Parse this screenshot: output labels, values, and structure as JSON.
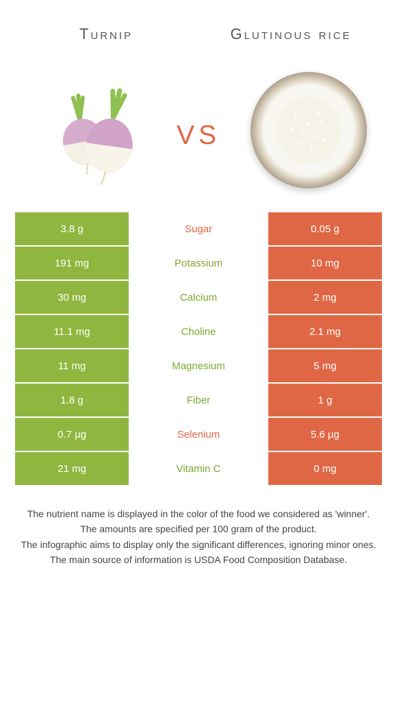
{
  "header": {
    "left_title": "Turnip",
    "right_title": "Glutinous rice",
    "vs_label": "vs"
  },
  "colors": {
    "left_bg": "#8fb63f",
    "right_bg": "#e06745",
    "mid_bg": "#ffffff",
    "winner_left_text": "#7ba82e",
    "winner_right_text": "#e06745"
  },
  "rows": [
    {
      "nutrient": "Sugar",
      "left": "3.8 g",
      "right": "0.05 g",
      "winner": "right"
    },
    {
      "nutrient": "Potassium",
      "left": "191 mg",
      "right": "10 mg",
      "winner": "left"
    },
    {
      "nutrient": "Calcium",
      "left": "30 mg",
      "right": "2 mg",
      "winner": "left"
    },
    {
      "nutrient": "Choline",
      "left": "11.1 mg",
      "right": "2.1 mg",
      "winner": "left"
    },
    {
      "nutrient": "Magnesium",
      "left": "11 mg",
      "right": "5 mg",
      "winner": "left"
    },
    {
      "nutrient": "Fiber",
      "left": "1.8 g",
      "right": "1 g",
      "winner": "left"
    },
    {
      "nutrient": "Selenium",
      "left": "0.7 µg",
      "right": "5.6 µg",
      "winner": "right"
    },
    {
      "nutrient": "Vitamin C",
      "left": "21 mg",
      "right": "0 mg",
      "winner": "left"
    }
  ],
  "footer": {
    "line1": "The nutrient name is displayed in the color of the food we considered as 'winner'.",
    "line2": "The amounts are specified per 100 gram of the product.",
    "line3": "The infographic aims to display only the significant differences, ignoring minor ones.",
    "line4": "The main source of information is USDA Food Composition Database."
  }
}
